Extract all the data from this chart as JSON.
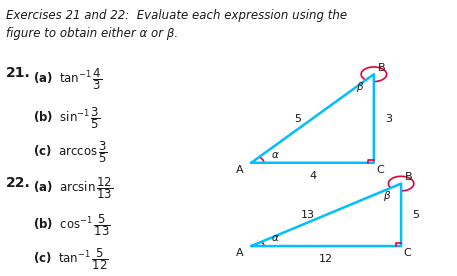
{
  "title_text": "Exercises 21 and 22:  Evaluate each expression using the\nfigure to obtain either α or β.",
  "ex21_label": "21.",
  "ex22_label": "22.",
  "items_21": [
    "(a)   tan⁻¹ ⁴⁄₃",
    "(b)   sin⁻¹ ³⁄₅",
    "(c)   arccos ³⁄₅"
  ],
  "items_22": [
    "(a)   arcsin ¹²⁄₁₃",
    "(b)   cos⁻¹ ⁵⁄₁₃",
    "(c)   tan⁻¹ ⁵⁄₁₂"
  ],
  "tri1": {
    "A": [
      0.55,
      0.38
    ],
    "C": [
      0.82,
      0.38
    ],
    "B": [
      0.82,
      0.72
    ],
    "label_A": "A",
    "label_B": "B",
    "label_C": "C",
    "side_AC": "4",
    "side_BC": "3",
    "side_AB": "5",
    "alpha_label": "α",
    "beta_label": "β"
  },
  "tri2": {
    "A": [
      0.55,
      0.06
    ],
    "C": [
      0.88,
      0.06
    ],
    "B": [
      0.88,
      0.3
    ],
    "label_A": "A",
    "label_B": "B",
    "label_C": "C",
    "side_AC": "12",
    "side_BC": "5",
    "side_AB": "13",
    "alpha_label": "α",
    "beta_label": "β"
  },
  "tri_color": "#00bfff",
  "angle_color": "#e8003c",
  "text_color": "#1a1a1a",
  "bg_color": "#ffffff"
}
